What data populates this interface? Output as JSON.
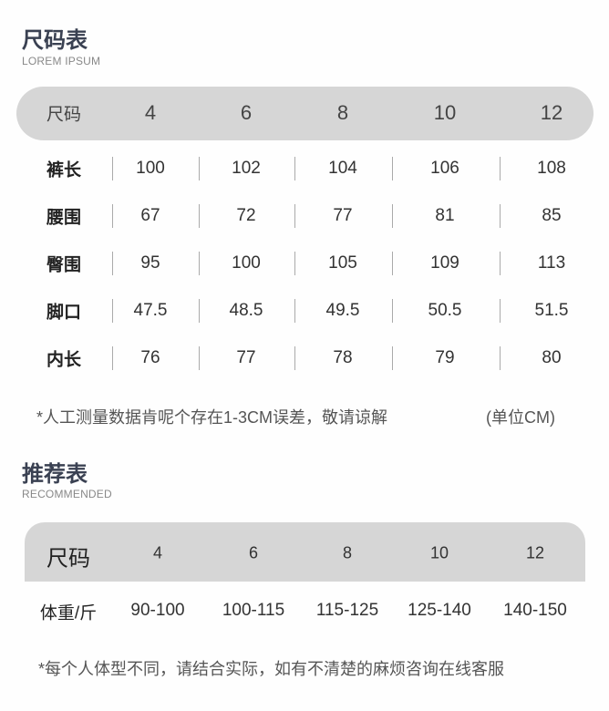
{
  "size_chart": {
    "title": "尺码表",
    "subtitle": "LOREM IPSUM",
    "header_label": "尺码",
    "sizes": [
      "4",
      "6",
      "8",
      "10",
      "12"
    ],
    "rows": [
      {
        "label": "裤长",
        "values": [
          "100",
          "102",
          "104",
          "106",
          "108"
        ]
      },
      {
        "label": "腰围",
        "values": [
          "67",
          "72",
          "77",
          "81",
          "85"
        ]
      },
      {
        "label": "臀围",
        "values": [
          "95",
          "100",
          "105",
          "109",
          "113"
        ]
      },
      {
        "label": "脚口",
        "values": [
          "47.5",
          "48.5",
          "49.5",
          "50.5",
          "51.5"
        ]
      },
      {
        "label": "内长",
        "values": [
          "76",
          "77",
          "78",
          "79",
          "80"
        ]
      }
    ],
    "note": "*人工测量数据肯呢个存在1-3CM误差，敬请谅解",
    "unit": "(单位CM)"
  },
  "recommend": {
    "title": "推荐表",
    "subtitle": "RECOMMENDED",
    "header_label": "尺码",
    "sizes": [
      "4",
      "6",
      "8",
      "10",
      "12"
    ],
    "row": {
      "label": "体重/斤",
      "values": [
        "90-100",
        "100-115",
        "115-125",
        "125-140",
        "140-150"
      ]
    },
    "note": "*每个人体型不同，请结合实际，如有不清楚的麻烦咨询在线客服"
  },
  "colors": {
    "title": "#3a4152",
    "header_bg": "#d6d6d6"
  }
}
